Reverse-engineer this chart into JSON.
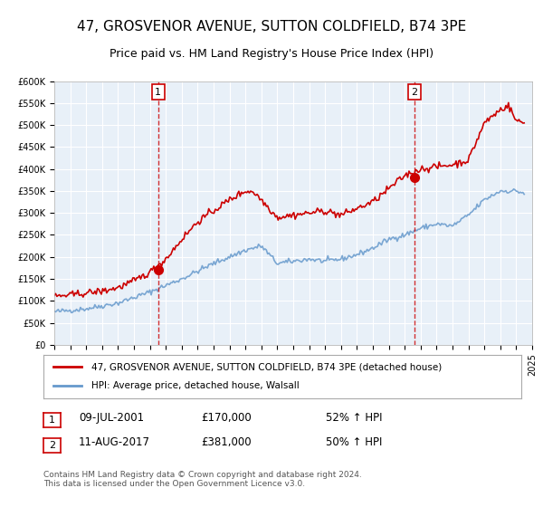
{
  "title": "47, GROSVENOR AVENUE, SUTTON COLDFIELD, B74 3PE",
  "subtitle": "Price paid vs. HM Land Registry's House Price Index (HPI)",
  "title_fontsize": 11,
  "subtitle_fontsize": 9,
  "background_color": "#ffffff",
  "plot_bg_color": "#e8f0f8",
  "grid_color": "#ffffff",
  "red_color": "#cc0000",
  "blue_color": "#6699cc",
  "marker1_date_x": 2001.52,
  "marker1_y": 170000,
  "marker2_date_x": 2017.61,
  "marker2_y": 381000,
  "legend_label_red": "47, GROSVENOR AVENUE, SUTTON COLDFIELD, B74 3PE (detached house)",
  "legend_label_blue": "HPI: Average price, detached house, Walsall",
  "annotation1_num": "1",
  "annotation1_date": "09-JUL-2001",
  "annotation1_price": "£170,000",
  "annotation1_hpi": "52% ↑ HPI",
  "annotation2_num": "2",
  "annotation2_date": "11-AUG-2017",
  "annotation2_price": "£381,000",
  "annotation2_hpi": "50% ↑ HPI",
  "footnote": "Contains HM Land Registry data © Crown copyright and database right 2024.\nThis data is licensed under the Open Government Licence v3.0.",
  "ylim": [
    0,
    600000
  ],
  "xlim_start": 1995.0,
  "xlim_end": 2025.0,
  "ytick_step": 50000
}
